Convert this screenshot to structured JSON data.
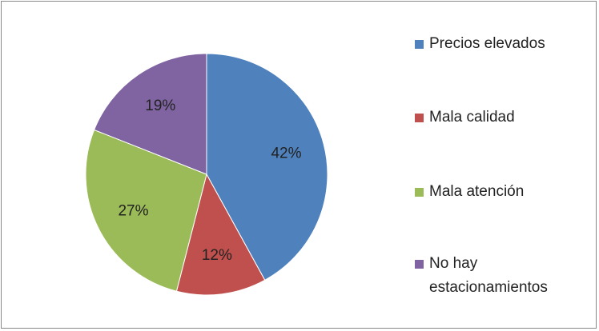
{
  "chart_data": {
    "type": "pie",
    "categories": [
      "Precios elevados",
      "Mala calidad",
      "Mala atención",
      "No hay estacionamientos"
    ],
    "values": [
      42,
      12,
      27,
      19
    ],
    "value_labels": [
      "42%",
      "12%",
      "27%",
      "19%"
    ],
    "colors": [
      "#4f81bd",
      "#c0504d",
      "#9bbb59",
      "#8064a2"
    ]
  }
}
